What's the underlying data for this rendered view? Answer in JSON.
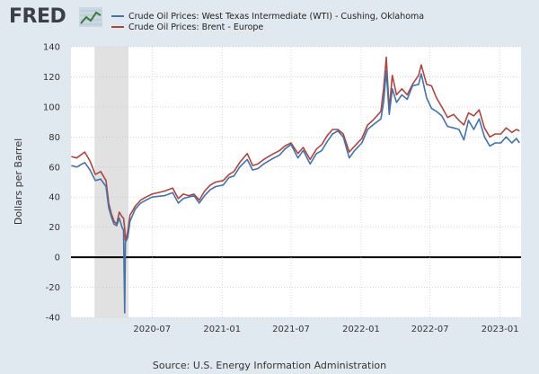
{
  "header": {
    "logo_text": "FRED"
  },
  "colors": {
    "wti": "#4572a7",
    "brent": "#aa4643",
    "recession": "#e1e1e1",
    "zero_line": "#000000",
    "grid": "#c0c0c0"
  },
  "source": "Source: U.S. Energy Information Administration",
  "chart_data": {
    "type": "line",
    "title": "",
    "xlabel": "",
    "ylabel": "Dollars per Barrel",
    "ylim": [
      -40,
      140
    ],
    "yticks": [
      -40,
      -20,
      0,
      20,
      40,
      60,
      80,
      100,
      120,
      140
    ],
    "xlim": [
      "2019-12-01",
      "2023-02-25"
    ],
    "xticks": [
      {
        "date": "2020-07-01",
        "label": "2020-07"
      },
      {
        "date": "2021-01-01",
        "label": "2021-01"
      },
      {
        "date": "2021-07-01",
        "label": "2021-07"
      },
      {
        "date": "2022-01-01",
        "label": "2022-01"
      },
      {
        "date": "2022-07-01",
        "label": "2022-07"
      },
      {
        "date": "2023-01-01",
        "label": "2023-01"
      }
    ],
    "grid": true,
    "legend_position": "top",
    "recession_shading": [
      {
        "start": "2020-02-01",
        "end": "2020-04-30"
      }
    ],
    "series": [
      {
        "name": "Crude Oil Prices: West Texas Intermediate (WTI) - Cushing, Oklahoma",
        "points": [
          [
            "2019-12-02",
            61
          ],
          [
            "2019-12-16",
            60
          ],
          [
            "2020-01-06",
            63
          ],
          [
            "2020-01-20",
            58
          ],
          [
            "2020-02-03",
            51
          ],
          [
            "2020-02-17",
            52
          ],
          [
            "2020-03-02",
            47
          ],
          [
            "2020-03-09",
            33
          ],
          [
            "2020-03-16",
            27
          ],
          [
            "2020-03-23",
            22
          ],
          [
            "2020-03-30",
            21
          ],
          [
            "2020-04-06",
            26
          ],
          [
            "2020-04-13",
            20
          ],
          [
            "2020-04-17",
            18
          ],
          [
            "2020-04-20",
            -37
          ],
          [
            "2020-04-22",
            10
          ],
          [
            "2020-04-28",
            13
          ],
          [
            "2020-05-04",
            24
          ],
          [
            "2020-05-18",
            32
          ],
          [
            "2020-06-01",
            36
          ],
          [
            "2020-06-15",
            38
          ],
          [
            "2020-07-01",
            40
          ],
          [
            "2020-08-03",
            41
          ],
          [
            "2020-08-24",
            43
          ],
          [
            "2020-09-08",
            36
          ],
          [
            "2020-09-21",
            39
          ],
          [
            "2020-10-05",
            40
          ],
          [
            "2020-10-19",
            41
          ],
          [
            "2020-11-02",
            36
          ],
          [
            "2020-11-16",
            41
          ],
          [
            "2020-12-01",
            45
          ],
          [
            "2020-12-15",
            47
          ],
          [
            "2021-01-04",
            48
          ],
          [
            "2021-01-19",
            53
          ],
          [
            "2021-02-01",
            54
          ],
          [
            "2021-02-16",
            60
          ],
          [
            "2021-03-08",
            65
          ],
          [
            "2021-03-22",
            58
          ],
          [
            "2021-04-05",
            59
          ],
          [
            "2021-04-20",
            62
          ],
          [
            "2021-05-03",
            64
          ],
          [
            "2021-05-17",
            66
          ],
          [
            "2021-06-01",
            68
          ],
          [
            "2021-06-15",
            72
          ],
          [
            "2021-07-01",
            75
          ],
          [
            "2021-07-19",
            66
          ],
          [
            "2021-08-02",
            71
          ],
          [
            "2021-08-20",
            62
          ],
          [
            "2021-09-06",
            69
          ],
          [
            "2021-09-20",
            71
          ],
          [
            "2021-10-04",
            77
          ],
          [
            "2021-10-18",
            82
          ],
          [
            "2021-11-01",
            84
          ],
          [
            "2021-11-15",
            80
          ],
          [
            "2021-12-01",
            66
          ],
          [
            "2021-12-15",
            71
          ],
          [
            "2022-01-03",
            76
          ],
          [
            "2022-01-18",
            85
          ],
          [
            "2022-02-01",
            88
          ],
          [
            "2022-02-22",
            92
          ],
          [
            "2022-03-01",
            103
          ],
          [
            "2022-03-08",
            124
          ],
          [
            "2022-03-16",
            95
          ],
          [
            "2022-03-24",
            112
          ],
          [
            "2022-04-04",
            103
          ],
          [
            "2022-04-18",
            108
          ],
          [
            "2022-05-02",
            105
          ],
          [
            "2022-05-16",
            114
          ],
          [
            "2022-06-01",
            115
          ],
          [
            "2022-06-08",
            122
          ],
          [
            "2022-06-22",
            106
          ],
          [
            "2022-07-05",
            99
          ],
          [
            "2022-07-18",
            97
          ],
          [
            "2022-08-01",
            94
          ],
          [
            "2022-08-16",
            87
          ],
          [
            "2022-09-01",
            86
          ],
          [
            "2022-09-15",
            85
          ],
          [
            "2022-09-28",
            78
          ],
          [
            "2022-10-10",
            91
          ],
          [
            "2022-10-24",
            85
          ],
          [
            "2022-11-07",
            92
          ],
          [
            "2022-11-21",
            80
          ],
          [
            "2022-12-05",
            74
          ],
          [
            "2022-12-19",
            76
          ],
          [
            "2023-01-03",
            76
          ],
          [
            "2023-01-17",
            80
          ],
          [
            "2023-02-01",
            76
          ],
          [
            "2023-02-13",
            79
          ],
          [
            "2023-02-21",
            76
          ]
        ]
      },
      {
        "name": "Crude Oil Prices: Brent - Europe",
        "points": [
          [
            "2019-12-02",
            67
          ],
          [
            "2019-12-16",
            66
          ],
          [
            "2020-01-06",
            70
          ],
          [
            "2020-01-20",
            64
          ],
          [
            "2020-02-03",
            55
          ],
          [
            "2020-02-17",
            57
          ],
          [
            "2020-03-02",
            51
          ],
          [
            "2020-03-09",
            36
          ],
          [
            "2020-03-16",
            29
          ],
          [
            "2020-03-23",
            24
          ],
          [
            "2020-03-30",
            22
          ],
          [
            "2020-04-06",
            30
          ],
          [
            "2020-04-13",
            27
          ],
          [
            "2020-04-17",
            26
          ],
          [
            "2020-04-20",
            19
          ],
          [
            "2020-04-22",
            11
          ],
          [
            "2020-04-28",
            17
          ],
          [
            "2020-05-04",
            28
          ],
          [
            "2020-05-18",
            34
          ],
          [
            "2020-06-01",
            38
          ],
          [
            "2020-06-15",
            40
          ],
          [
            "2020-07-01",
            42
          ],
          [
            "2020-08-03",
            44
          ],
          [
            "2020-08-24",
            46
          ],
          [
            "2020-09-08",
            39
          ],
          [
            "2020-09-21",
            42
          ],
          [
            "2020-10-05",
            41
          ],
          [
            "2020-10-19",
            42
          ],
          [
            "2020-11-02",
            38
          ],
          [
            "2020-11-16",
            44
          ],
          [
            "2020-12-01",
            48
          ],
          [
            "2020-12-15",
            50
          ],
          [
            "2021-01-04",
            51
          ],
          [
            "2021-01-19",
            55
          ],
          [
            "2021-02-01",
            57
          ],
          [
            "2021-02-16",
            63
          ],
          [
            "2021-03-08",
            69
          ],
          [
            "2021-03-22",
            61
          ],
          [
            "2021-04-05",
            62
          ],
          [
            "2021-04-20",
            65
          ],
          [
            "2021-05-03",
            67
          ],
          [
            "2021-05-17",
            69
          ],
          [
            "2021-06-01",
            71
          ],
          [
            "2021-06-15",
            74
          ],
          [
            "2021-07-01",
            76
          ],
          [
            "2021-07-19",
            69
          ],
          [
            "2021-08-02",
            73
          ],
          [
            "2021-08-20",
            65
          ],
          [
            "2021-09-06",
            72
          ],
          [
            "2021-09-20",
            75
          ],
          [
            "2021-10-04",
            81
          ],
          [
            "2021-10-18",
            85
          ],
          [
            "2021-11-01",
            85
          ],
          [
            "2021-11-15",
            82
          ],
          [
            "2021-12-01",
            70
          ],
          [
            "2021-12-15",
            74
          ],
          [
            "2022-01-03",
            79
          ],
          [
            "2022-01-18",
            88
          ],
          [
            "2022-02-01",
            91
          ],
          [
            "2022-02-22",
            97
          ],
          [
            "2022-03-01",
            112
          ],
          [
            "2022-03-08",
            133
          ],
          [
            "2022-03-16",
            98
          ],
          [
            "2022-03-24",
            121
          ],
          [
            "2022-04-04",
            108
          ],
          [
            "2022-04-18",
            112
          ],
          [
            "2022-05-02",
            108
          ],
          [
            "2022-05-16",
            115
          ],
          [
            "2022-06-01",
            121
          ],
          [
            "2022-06-08",
            128
          ],
          [
            "2022-06-22",
            115
          ],
          [
            "2022-07-05",
            114
          ],
          [
            "2022-07-18",
            106
          ],
          [
            "2022-08-01",
            100
          ],
          [
            "2022-08-16",
            93
          ],
          [
            "2022-09-01",
            95
          ],
          [
            "2022-09-15",
            91
          ],
          [
            "2022-09-28",
            88
          ],
          [
            "2022-10-10",
            96
          ],
          [
            "2022-10-24",
            94
          ],
          [
            "2022-11-07",
            98
          ],
          [
            "2022-11-21",
            86
          ],
          [
            "2022-12-05",
            80
          ],
          [
            "2022-12-19",
            82
          ],
          [
            "2023-01-03",
            82
          ],
          [
            "2023-01-17",
            86
          ],
          [
            "2023-02-01",
            83
          ],
          [
            "2023-02-13",
            85
          ],
          [
            "2023-02-21",
            84
          ]
        ]
      }
    ]
  }
}
